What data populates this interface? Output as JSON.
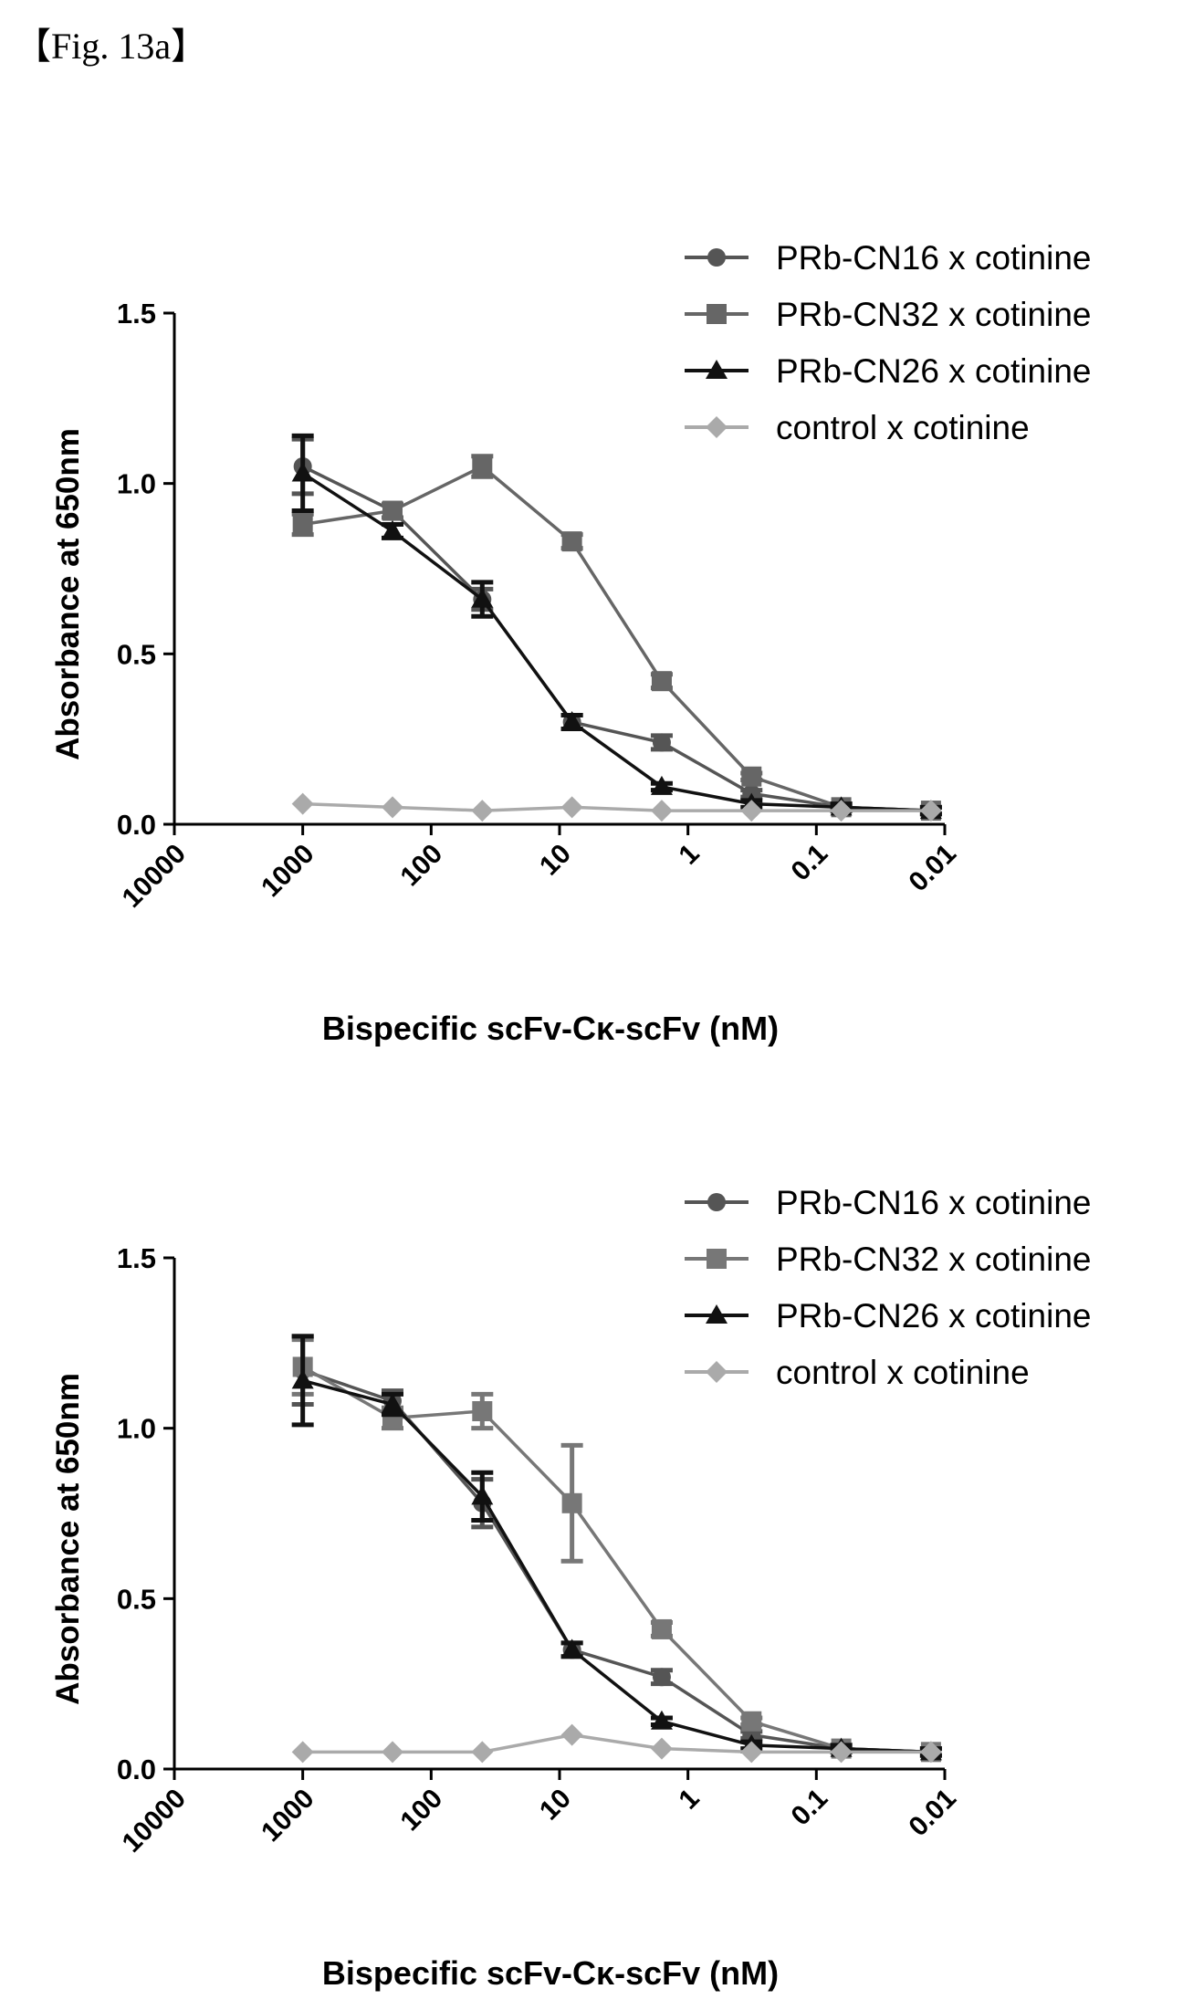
{
  "figure_label": "【Fig. 13a】",
  "chart_data": [
    {
      "type": "line",
      "xlabel": "Bispecific scFv-Cκ-scFv (nM)",
      "ylabel": "Absorbance at 650nm",
      "x_scale": "log",
      "x_reversed": true,
      "xlim": [
        10000,
        0.01
      ],
      "ylim": [
        0,
        1.5
      ],
      "x_tick_labels": [
        "10000",
        "1000",
        "100",
        "10",
        "1",
        "0.1",
        "0.01"
      ],
      "y_tick_labels": [
        "0.0",
        "0.5",
        "1.0",
        "1.5"
      ],
      "legend_position": "top-right",
      "x": [
        1000,
        200,
        40,
        8,
        1.6,
        0.32,
        0.064,
        0.0128
      ],
      "series": [
        {
          "name": "PRb-CN16 x cotinine",
          "marker": "circle",
          "color": "#555555",
          "values": [
            1.05,
            0.92,
            0.66,
            0.3,
            0.24,
            0.09,
            0.05,
            0.04
          ],
          "errors": [
            0.08,
            0.02,
            0.03,
            0.02,
            0.02,
            0.01,
            0.01,
            0.01
          ]
        },
        {
          "name": "PRb-CN32 x cotinine",
          "marker": "square",
          "color": "#666666",
          "values": [
            0.88,
            0.92,
            1.05,
            0.83,
            0.42,
            0.14,
            0.05,
            0.04
          ],
          "errors": [
            0.03,
            0.02,
            0.03,
            0.02,
            0.02,
            0.01,
            0.01,
            0.01
          ]
        },
        {
          "name": "PRb-CN26 x cotinine",
          "marker": "triangle",
          "color": "#111111",
          "values": [
            1.03,
            0.86,
            0.66,
            0.3,
            0.11,
            0.06,
            0.05,
            0.04
          ],
          "errors": [
            0.11,
            0.02,
            0.05,
            0.02,
            0.01,
            0.01,
            0.01,
            0.01
          ]
        },
        {
          "name": "control x cotinine",
          "marker": "diamond",
          "color": "#aaaaaa",
          "values": [
            0.06,
            0.05,
            0.04,
            0.05,
            0.04,
            0.04,
            0.04,
            0.04
          ],
          "errors": [
            0.005,
            0.005,
            0.005,
            0.005,
            0.005,
            0.005,
            0.005,
            0.005
          ]
        }
      ]
    },
    {
      "type": "line",
      "xlabel": "Bispecific scFv-Cκ-scFv (nM)",
      "ylabel": "Absorbance at 650nm",
      "x_scale": "log",
      "x_reversed": true,
      "xlim": [
        10000,
        0.01
      ],
      "ylim": [
        0,
        1.5
      ],
      "x_tick_labels": [
        "10000",
        "1000",
        "100",
        "10",
        "1",
        "0.1",
        "0.01"
      ],
      "y_tick_labels": [
        "0.0",
        "0.5",
        "1.0",
        "1.5"
      ],
      "legend_position": "top-right",
      "x": [
        1000,
        200,
        40,
        8,
        1.6,
        0.32,
        0.064,
        0.0128
      ],
      "series": [
        {
          "name": "PRb-CN16 x cotinine",
          "marker": "circle",
          "color": "#555555",
          "values": [
            1.17,
            1.08,
            0.78,
            0.35,
            0.27,
            0.1,
            0.06,
            0.05
          ],
          "errors": [
            0.1,
            0.03,
            0.07,
            0.02,
            0.02,
            0.01,
            0.01,
            0.01
          ]
        },
        {
          "name": "PRb-CN32 x cotinine",
          "marker": "square",
          "color": "#777777",
          "values": [
            1.18,
            1.03,
            1.05,
            0.78,
            0.41,
            0.14,
            0.06,
            0.05
          ],
          "errors": [
            0.08,
            0.03,
            0.05,
            0.17,
            0.02,
            0.01,
            0.01,
            0.01
          ]
        },
        {
          "name": "PRb-CN26 x cotinine",
          "marker": "triangle",
          "color": "#111111",
          "values": [
            1.14,
            1.07,
            0.8,
            0.35,
            0.14,
            0.07,
            0.06,
            0.05
          ],
          "errors": [
            0.13,
            0.03,
            0.07,
            0.02,
            0.01,
            0.01,
            0.01,
            0.01
          ]
        },
        {
          "name": "control x cotinine",
          "marker": "diamond",
          "color": "#aaaaaa",
          "values": [
            0.05,
            0.05,
            0.05,
            0.1,
            0.06,
            0.05,
            0.05,
            0.05
          ],
          "errors": [
            0.005,
            0.005,
            0.005,
            0.005,
            0.005,
            0.005,
            0.005,
            0.005
          ]
        }
      ]
    }
  ]
}
